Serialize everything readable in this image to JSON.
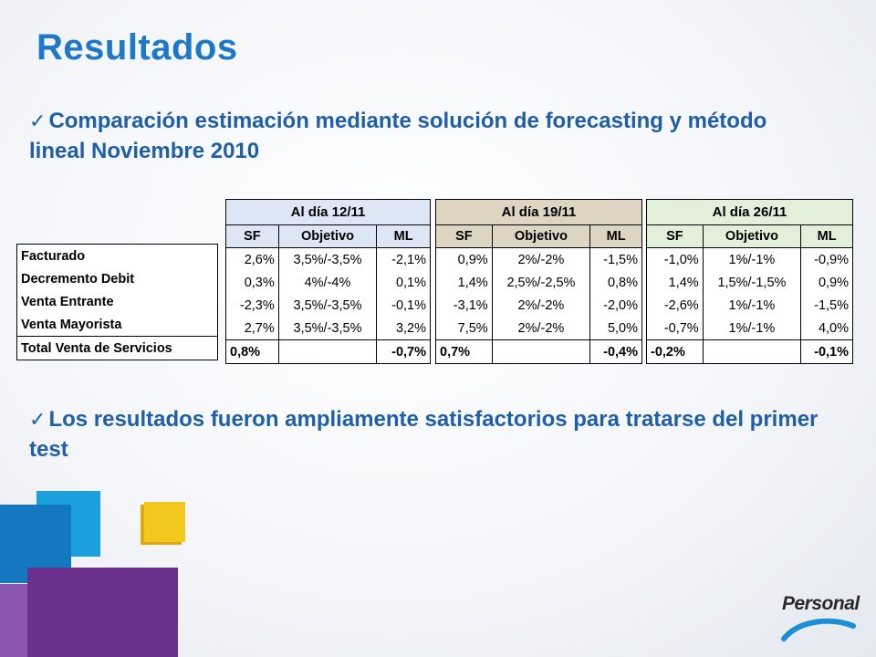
{
  "title": "Resultados",
  "bullet1": "Comparación estimación mediante solución de forecasting y método lineal Noviembre 2010",
  "bullet2": "Los resultados fueron ampliamente satisfactorios para tratarse del primer test",
  "rows": [
    "Facturado",
    "Decremento Debit",
    "Venta Entrante",
    "Venta Mayorista",
    "Total Venta de Servicios"
  ],
  "subheaders": {
    "sf": "SF",
    "obj": "Objetivo",
    "ml": "ML"
  },
  "blocks": [
    {
      "header": "Al día 12/11",
      "color": "#dce6f4",
      "values": [
        [
          "2,6%",
          "3,5%/-3,5%",
          "-2,1%"
        ],
        [
          "0,3%",
          "4%/-4%",
          "0,1%"
        ],
        [
          "-2,3%",
          "3,5%/-3,5%",
          "-0,1%"
        ],
        [
          "2,7%",
          "3,5%/-3,5%",
          "3,2%"
        ],
        [
          "0,8%",
          "",
          "-0,7%"
        ]
      ]
    },
    {
      "header": "Al día 19/11",
      "color": "#ddd5c2",
      "values": [
        [
          "0,9%",
          "2%/-2%",
          "-1,5%"
        ],
        [
          "1,4%",
          "2,5%/-2,5%",
          "0,8%"
        ],
        [
          "-3,1%",
          "2%/-2%",
          "-2,0%"
        ],
        [
          "7,5%",
          "2%/-2%",
          "5,0%"
        ],
        [
          "0,7%",
          "",
          "-0,4%"
        ]
      ]
    },
    {
      "header": "Al día 26/11",
      "color": "#e2f0da",
      "values": [
        [
          "-1,0%",
          "1%/-1%",
          "-0,9%"
        ],
        [
          "1,4%",
          "1,5%/-1,5%",
          "0,9%"
        ],
        [
          "-2,6%",
          "1%/-1%",
          "-1,5%"
        ],
        [
          "-0,7%",
          "1%/-1%",
          "4,0%"
        ],
        [
          "-0,2%",
          "",
          "-0,1%"
        ]
      ]
    }
  ],
  "logo": {
    "text": "Personal",
    "icon": "personal-logo-arc"
  }
}
